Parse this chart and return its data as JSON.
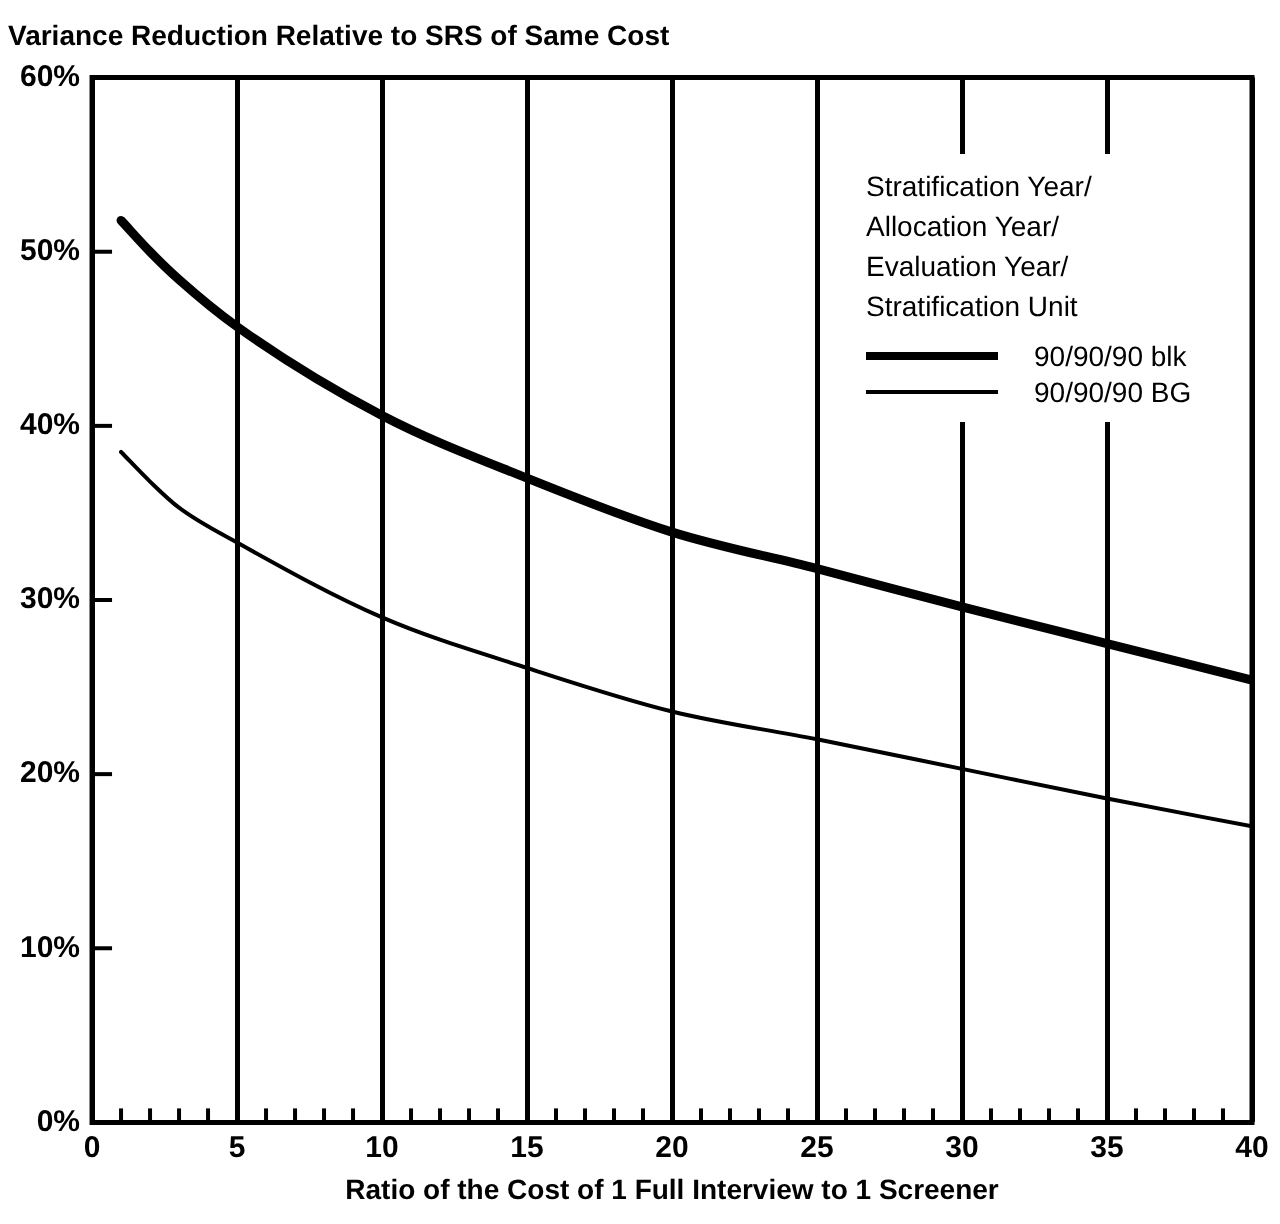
{
  "chart_data": {
    "type": "line",
    "ylabel": "Variance Reduction Relative to SRS of Same Cost",
    "xlabel": "Ratio of the Cost of 1 Full Interview to 1 Screener",
    "legend_title": "Stratification Year/\nAllocation Year/\nEvaluation Year/\nStratification Unit",
    "legend": "top right",
    "grid": "x",
    "marker": "none",
    "line_style": "solid",
    "x": [
      1,
      2,
      3,
      5,
      10,
      15,
      20,
      25,
      30,
      35,
      40
    ],
    "series": [
      {
        "name": "90/90/90 blk",
        "color": "#000000",
        "values": [
          51.8,
          50.0,
          48.4,
          45.7,
          40.6,
          37.0,
          33.9,
          31.8,
          29.6,
          27.5,
          25.4
        ]
      },
      {
        "name": "90/90/90 BG",
        "color": "#000000",
        "values": [
          38.5,
          36.8,
          35.3,
          33.3,
          29.0,
          26.1,
          23.6,
          22.0,
          20.3,
          18.6,
          17.0
        ]
      }
    ],
    "xlim": [
      0,
      40
    ],
    "ylim": [
      0,
      60
    ],
    "xticks": [
      0,
      {
        "value": 1,
        "label": null
      },
      {
        "value": 2,
        "label": null
      },
      {
        "value": 3,
        "label": null
      },
      {
        "value": 4,
        "label": null
      },
      5,
      {
        "value": 6,
        "label": null
      },
      {
        "value": 7,
        "label": null
      },
      {
        "value": 8,
        "label": null
      },
      {
        "value": 9,
        "label": null
      },
      10,
      {
        "value": 11,
        "label": null
      },
      {
        "value": 12,
        "label": null
      },
      {
        "value": 13,
        "label": null
      },
      {
        "value": 14,
        "label": null
      },
      15,
      {
        "value": 16,
        "label": null
      },
      {
        "value": 17,
        "label": null
      },
      {
        "value": 18,
        "label": null
      },
      {
        "value": 19,
        "label": null
      },
      20,
      {
        "value": 21,
        "label": null
      },
      {
        "value": 22,
        "label": null
      },
      {
        "value": 23,
        "label": null
      },
      {
        "value": 24,
        "label": null
      },
      25,
      {
        "value": 26,
        "label": null
      },
      {
        "value": 27,
        "label": null
      },
      {
        "value": 28,
        "label": null
      },
      {
        "value": 29,
        "label": null
      },
      30,
      {
        "value": 31,
        "label": null
      },
      {
        "value": 32,
        "label": null
      },
      {
        "value": 33,
        "label": null
      },
      {
        "value": 34,
        "label": null
      },
      35,
      {
        "value": 36,
        "label": null
      },
      {
        "value": 37,
        "label": null
      },
      {
        "value": 38,
        "label": null
      },
      {
        "value": 39,
        "label": null
      },
      40
    ],
    "yticks": [
      {
        "value": 0,
        "label": "0%"
      },
      {
        "value": 10,
        "label": "10%"
      },
      {
        "value": 20,
        "label": "20%"
      },
      {
        "value": 30,
        "label": "30%"
      },
      {
        "value": 40,
        "label": "40%"
      },
      {
        "value": 50,
        "label": "50%"
      },
      {
        "value": 60,
        "label": "60%"
      }
    ]
  }
}
